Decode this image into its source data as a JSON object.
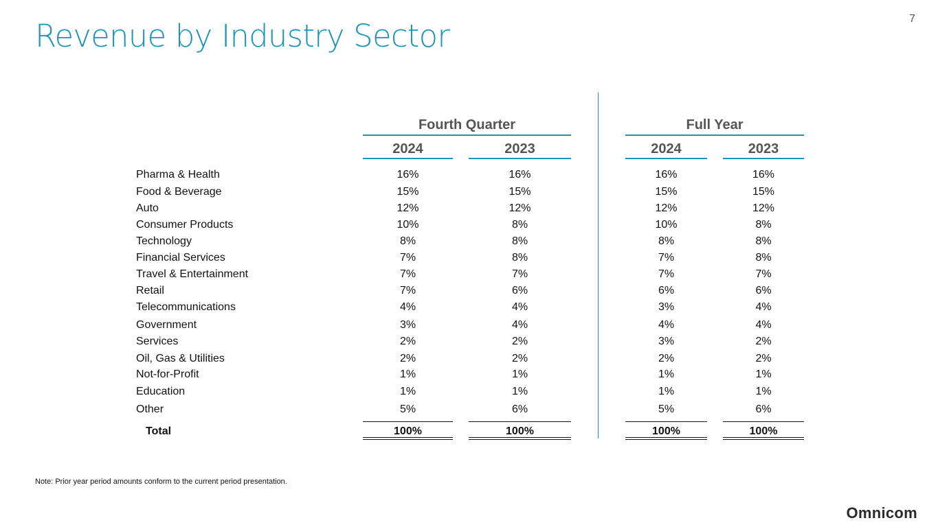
{
  "page": {
    "number": "7",
    "title": "Revenue by Industry Sector",
    "note": "Note:  Prior year period amounts conform to the current period presentation.",
    "logo": "Omnicom"
  },
  "table": {
    "groups": [
      "Fourth Quarter",
      "Full Year"
    ],
    "years": [
      "2024",
      "2023",
      "2024",
      "2023"
    ],
    "rows": [
      {
        "label": "Pharma & Health",
        "values": [
          "16%",
          "16%",
          "16%",
          "16%"
        ]
      },
      {
        "label": "Food & Beverage",
        "values": [
          "15%",
          "15%",
          "15%",
          "15%"
        ]
      },
      {
        "label": "Auto",
        "values": [
          "12%",
          "12%",
          "12%",
          "12%"
        ]
      },
      {
        "label": "Consumer Products",
        "values": [
          "10%",
          "8%",
          "10%",
          "8%"
        ]
      },
      {
        "label": "Technology",
        "values": [
          "8%",
          "8%",
          "8%",
          "8%"
        ]
      },
      {
        "label": "Financial Services",
        "values": [
          "7%",
          "8%",
          "7%",
          "8%"
        ]
      },
      {
        "label": "Travel & Entertainment",
        "values": [
          "7%",
          "7%",
          "7%",
          "7%"
        ]
      },
      {
        "label": "Retail",
        "values": [
          "7%",
          "6%",
          "6%",
          "6%"
        ]
      },
      {
        "label": "Telecommunications",
        "values": [
          "4%",
          "4%",
          "3%",
          "4%"
        ]
      },
      {
        "label": "Government",
        "values": [
          "3%",
          "4%",
          "4%",
          "4%"
        ]
      },
      {
        "label": "Services",
        "values": [
          "2%",
          "2%",
          "3%",
          "2%"
        ]
      },
      {
        "label": "Oil, Gas & Utilities",
        "values": [
          "2%",
          "2%",
          "2%",
          "2%"
        ]
      },
      {
        "label": "Not-for-Profit",
        "values": [
          "1%",
          "1%",
          "1%",
          "1%"
        ]
      },
      {
        "label": "Education",
        "values": [
          "1%",
          "1%",
          "1%",
          "1%"
        ]
      },
      {
        "label": "Other",
        "values": [
          "5%",
          "6%",
          "5%",
          "6%"
        ]
      }
    ],
    "total": {
      "label": "Total",
      "values": [
        "100%",
        "100%",
        "100%",
        "100%"
      ]
    }
  },
  "colors": {
    "accent": "#1f93b7",
    "text": "#111111",
    "header_text": "#555555"
  }
}
